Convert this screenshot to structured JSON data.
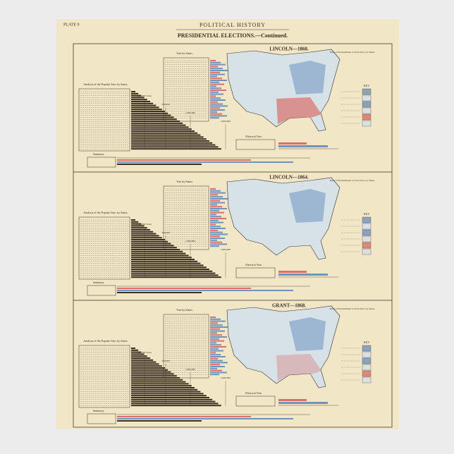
{
  "header": {
    "plate": "PLATE 9",
    "title": "POLITICAL HISTORY",
    "subtitle": "PRESIDENTIAL ELECTIONS.—Continued."
  },
  "panels": [
    {
      "title": "LINCOLN—1860.",
      "ratio_label": "Ratio of Predominant to Total Vote, by States.",
      "vote_label": "Vote by States.",
      "analysis_label": "Analysis of the Popular Vote, by States.",
      "electoral_label": "Electoral Vote.",
      "summary_label": "Summary.",
      "key_label": "KEY",
      "scale_labels": [
        "100,000 Votes",
        "500,000",
        "1,000,000",
        "2,000,000"
      ]
    },
    {
      "title": "LINCOLN—1864.",
      "ratio_label": "Ratio of Predominant to Total Vote, by States.",
      "vote_label": "Vote by States.",
      "analysis_label": "Analysis of the Popular Vote, by States.",
      "electoral_label": "Electoral Vote.",
      "summary_label": "Summary.",
      "key_label": "KEY",
      "scale_labels": [
        "100,000 Votes",
        "500,000",
        "1,000,000",
        "2,000,000"
      ]
    },
    {
      "title": "GRANT—1868.",
      "ratio_label": "Ratio of Predominant to Total Vote, by States.",
      "vote_label": "Vote by States.",
      "analysis_label": "Analysis of the Popular Vote, by States.",
      "electoral_label": "Electoral Vote.",
      "summary_label": "Summary.",
      "key_label": "KEY",
      "scale_labels": [
        "100,000 Votes",
        "500,000",
        "1,000,000",
        "2,000,000"
      ]
    }
  ]
}
